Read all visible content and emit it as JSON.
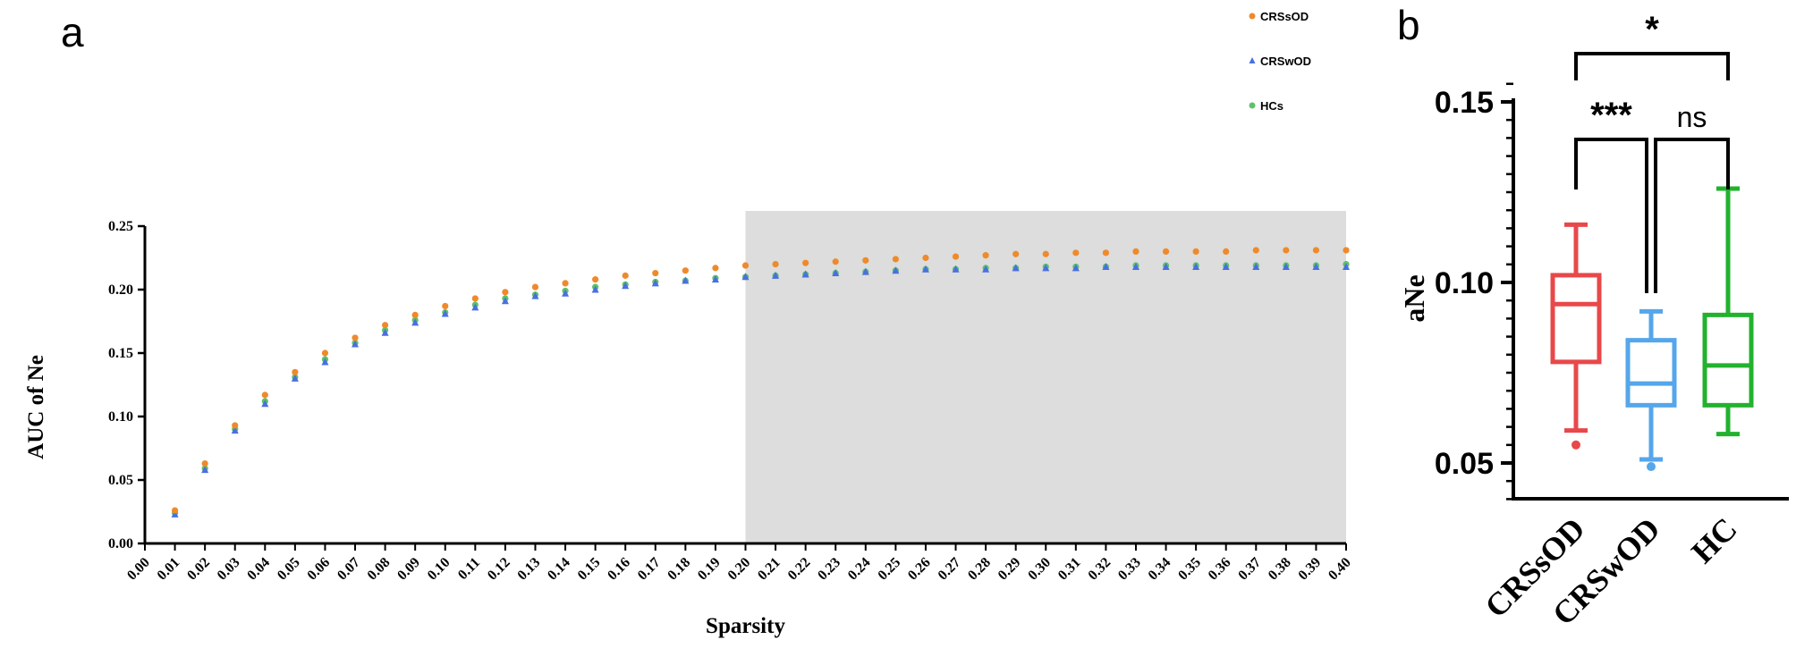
{
  "panels": {
    "a_label": "a",
    "b_label": "b"
  },
  "chart_data": [
    {
      "type": "scatter",
      "xlabel": "Sparsity",
      "ylabel": "AUC of Ne",
      "xlim": [
        0.0,
        0.4
      ],
      "ylim": [
        0.0,
        0.25
      ],
      "x_ticks": [
        "0.00",
        "0.01",
        "0.02",
        "0.03",
        "0.04",
        "0.05",
        "0.06",
        "0.07",
        "0.08",
        "0.09",
        "0.10",
        "0.11",
        "0.12",
        "0.13",
        "0.14",
        "0.15",
        "0.16",
        "0.17",
        "0.18",
        "0.19",
        "0.20",
        "0.21",
        "0.22",
        "0.23",
        "0.24",
        "0.25",
        "0.26",
        "0.27",
        "0.28",
        "0.29",
        "0.30",
        "0.31",
        "0.32",
        "0.33",
        "0.34",
        "0.35",
        "0.36",
        "0.37",
        "0.38",
        "0.39",
        "0.40"
      ],
      "y_ticks": [
        "0.00",
        "0.05",
        "0.10",
        "0.15",
        "0.20",
        "0.25"
      ],
      "shaded_region": [
        0.2,
        0.4
      ],
      "legend_position": "top-right",
      "x": [
        0.01,
        0.02,
        0.03,
        0.04,
        0.05,
        0.06,
        0.07,
        0.08,
        0.09,
        0.1,
        0.11,
        0.12,
        0.13,
        0.14,
        0.15,
        0.16,
        0.17,
        0.18,
        0.19,
        0.2,
        0.21,
        0.22,
        0.23,
        0.24,
        0.25,
        0.26,
        0.27,
        0.28,
        0.29,
        0.3,
        0.31,
        0.32,
        0.33,
        0.34,
        0.35,
        0.36,
        0.37,
        0.38,
        0.39,
        0.4
      ],
      "series": [
        {
          "name": "CRSsOD",
          "color": "#ef8a2b",
          "marker": "circle",
          "values": [
            0.026,
            0.063,
            0.093,
            0.117,
            0.135,
            0.15,
            0.162,
            0.172,
            0.18,
            0.187,
            0.193,
            0.198,
            0.202,
            0.205,
            0.208,
            0.211,
            0.213,
            0.215,
            0.217,
            0.219,
            0.22,
            0.221,
            0.222,
            0.223,
            0.224,
            0.225,
            0.226,
            0.227,
            0.228,
            0.228,
            0.229,
            0.229,
            0.23,
            0.23,
            0.23,
            0.23,
            0.231,
            0.231,
            0.231,
            0.231
          ]
        },
        {
          "name": "CRSwOD",
          "color": "#4a6fe0",
          "marker": "triangle",
          "values": [
            0.023,
            0.058,
            0.089,
            0.11,
            0.13,
            0.143,
            0.157,
            0.166,
            0.174,
            0.181,
            0.186,
            0.191,
            0.195,
            0.197,
            0.2,
            0.203,
            0.205,
            0.207,
            0.208,
            0.21,
            0.211,
            0.212,
            0.213,
            0.214,
            0.215,
            0.216,
            0.216,
            0.216,
            0.217,
            0.217,
            0.217,
            0.218,
            0.218,
            0.218,
            0.218,
            0.218,
            0.218,
            0.218,
            0.218,
            0.218
          ]
        },
        {
          "name": "HCs",
          "color": "#5cc26b",
          "marker": "circle",
          "values": [
            0.024,
            0.059,
            0.09,
            0.112,
            0.131,
            0.145,
            0.158,
            0.168,
            0.176,
            0.182,
            0.188,
            0.193,
            0.196,
            0.199,
            0.202,
            0.204,
            0.206,
            0.207,
            0.209,
            0.21,
            0.211,
            0.212,
            0.213,
            0.214,
            0.215,
            0.216,
            0.216,
            0.217,
            0.217,
            0.218,
            0.218,
            0.218,
            0.219,
            0.219,
            0.219,
            0.219,
            0.219,
            0.219,
            0.219,
            0.22
          ]
        }
      ]
    },
    {
      "type": "box",
      "ylabel": "aNe",
      "ylim": [
        0.04,
        0.155
      ],
      "y_ticks": [
        "0.05",
        "0.10",
        "0.15"
      ],
      "categories": [
        "CRSsOD",
        "CRSwOD",
        "HC"
      ],
      "boxes": [
        {
          "name": "CRSsOD",
          "color": "#e8484a",
          "whisker_low": 0.059,
          "q1": 0.078,
          "median": 0.094,
          "q3": 0.102,
          "whisker_high": 0.116,
          "outliers": [
            0.055
          ]
        },
        {
          "name": "CRSwOD",
          "color": "#55a6ea",
          "whisker_low": 0.051,
          "q1": 0.066,
          "median": 0.072,
          "q3": 0.084,
          "whisker_high": 0.092,
          "outliers": [
            0.049
          ]
        },
        {
          "name": "HC",
          "color": "#22b22e",
          "whisker_low": 0.058,
          "q1": 0.066,
          "median": 0.077,
          "q3": 0.091,
          "whisker_high": 0.126,
          "outliers": []
        }
      ],
      "significance": [
        {
          "from": "CRSsOD",
          "to": "CRSwOD",
          "label": "***"
        },
        {
          "from": "CRSwOD",
          "to": "HC",
          "label": "ns"
        },
        {
          "from": "CRSsOD",
          "to": "HC",
          "label": "*"
        }
      ]
    }
  ]
}
